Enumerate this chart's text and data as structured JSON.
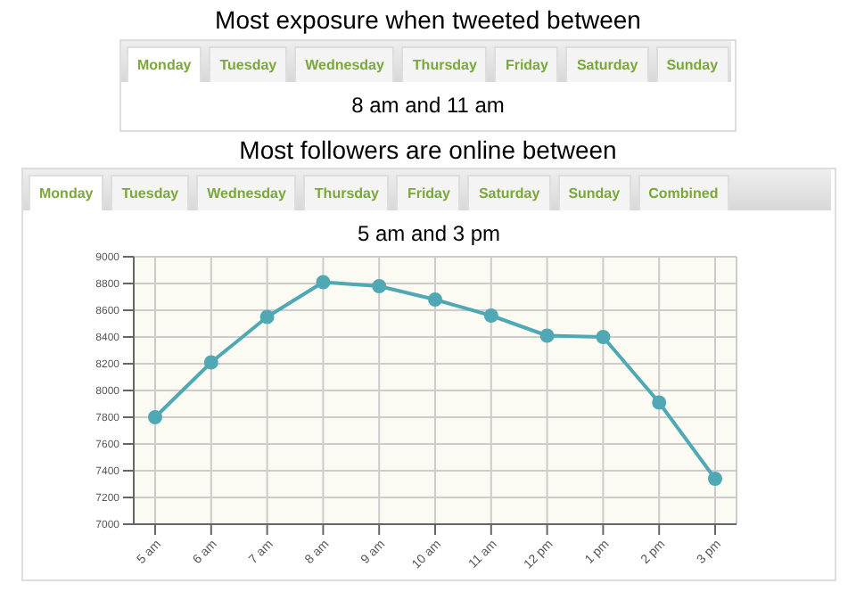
{
  "chart_data": {
    "type": "line",
    "title": "Most followers are online between",
    "subtitle": "5 am and 3 pm",
    "annotations": [
      "Most exposure when tweeted between",
      "Monday",
      "Tuesday",
      "Wednesday",
      "Thursday",
      "Friday",
      "Saturday",
      "Sunday",
      "8 am and 11 am",
      "Monday",
      "Tuesday",
      "Wednesday",
      "Thursday",
      "Friday",
      "Saturday",
      "Sunday",
      "Combined"
    ],
    "categories": [
      "5 am",
      "6 am",
      "7 am",
      "8 am",
      "9 am",
      "10 am",
      "11 am",
      "12 pm",
      "1 pm",
      "2 pm",
      "3 pm"
    ],
    "series": [
      {
        "color": "#4fa8b4",
        "values": [
          7800,
          8210,
          8550,
          8810,
          8780,
          8680,
          8560,
          8410,
          8400,
          7910,
          7340
        ]
      }
    ],
    "ylim": [
      7000,
      9000
    ],
    "yticks": [
      7000,
      7200,
      7400,
      7600,
      7800,
      8000,
      8200,
      8400,
      8600,
      8800,
      9000
    ],
    "grid": true,
    "marker": "circle",
    "line_style": "solid"
  }
}
